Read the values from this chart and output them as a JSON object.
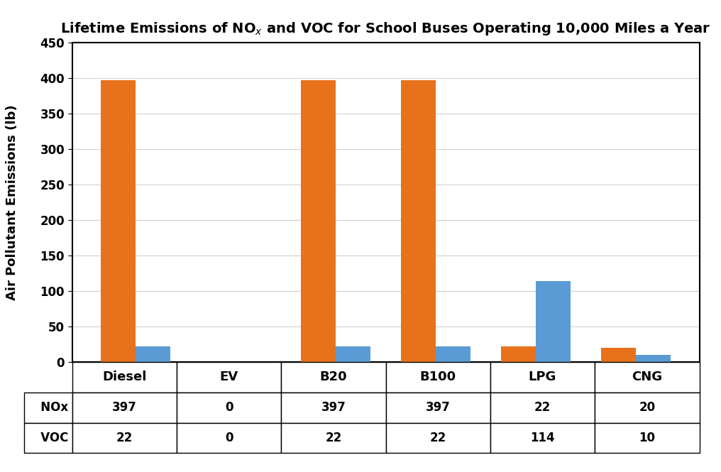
{
  "title": "Lifetime Emissions of NO$_x$ and VOC for School Buses Operating 10,000 Miles a Year",
  "title_plain": "Lifetime Emissions of NOx and VOC for School Buses Operating 10,000 Miles a Year",
  "ylabel": "Air Pollutant Emissions (lb)",
  "categories": [
    "Diesel",
    "EV",
    "B20",
    "B100",
    "LPG",
    "CNG"
  ],
  "nox_values": [
    397,
    0,
    397,
    397,
    22,
    20
  ],
  "voc_values": [
    22,
    0,
    22,
    22,
    114,
    10
  ],
  "nox_color": "#E8721C",
  "voc_color": "#5B9BD5",
  "ylim": [
    0,
    450
  ],
  "yticks": [
    0,
    50,
    100,
    150,
    200,
    250,
    300,
    350,
    400,
    450
  ],
  "bar_width": 0.35,
  "legend_labels": [
    "NOx",
    "VOC"
  ],
  "background_color": "#ffffff",
  "grid_color": "#d0d0d0",
  "table_header_color": "#ffffff",
  "table_border_color": "#000000"
}
